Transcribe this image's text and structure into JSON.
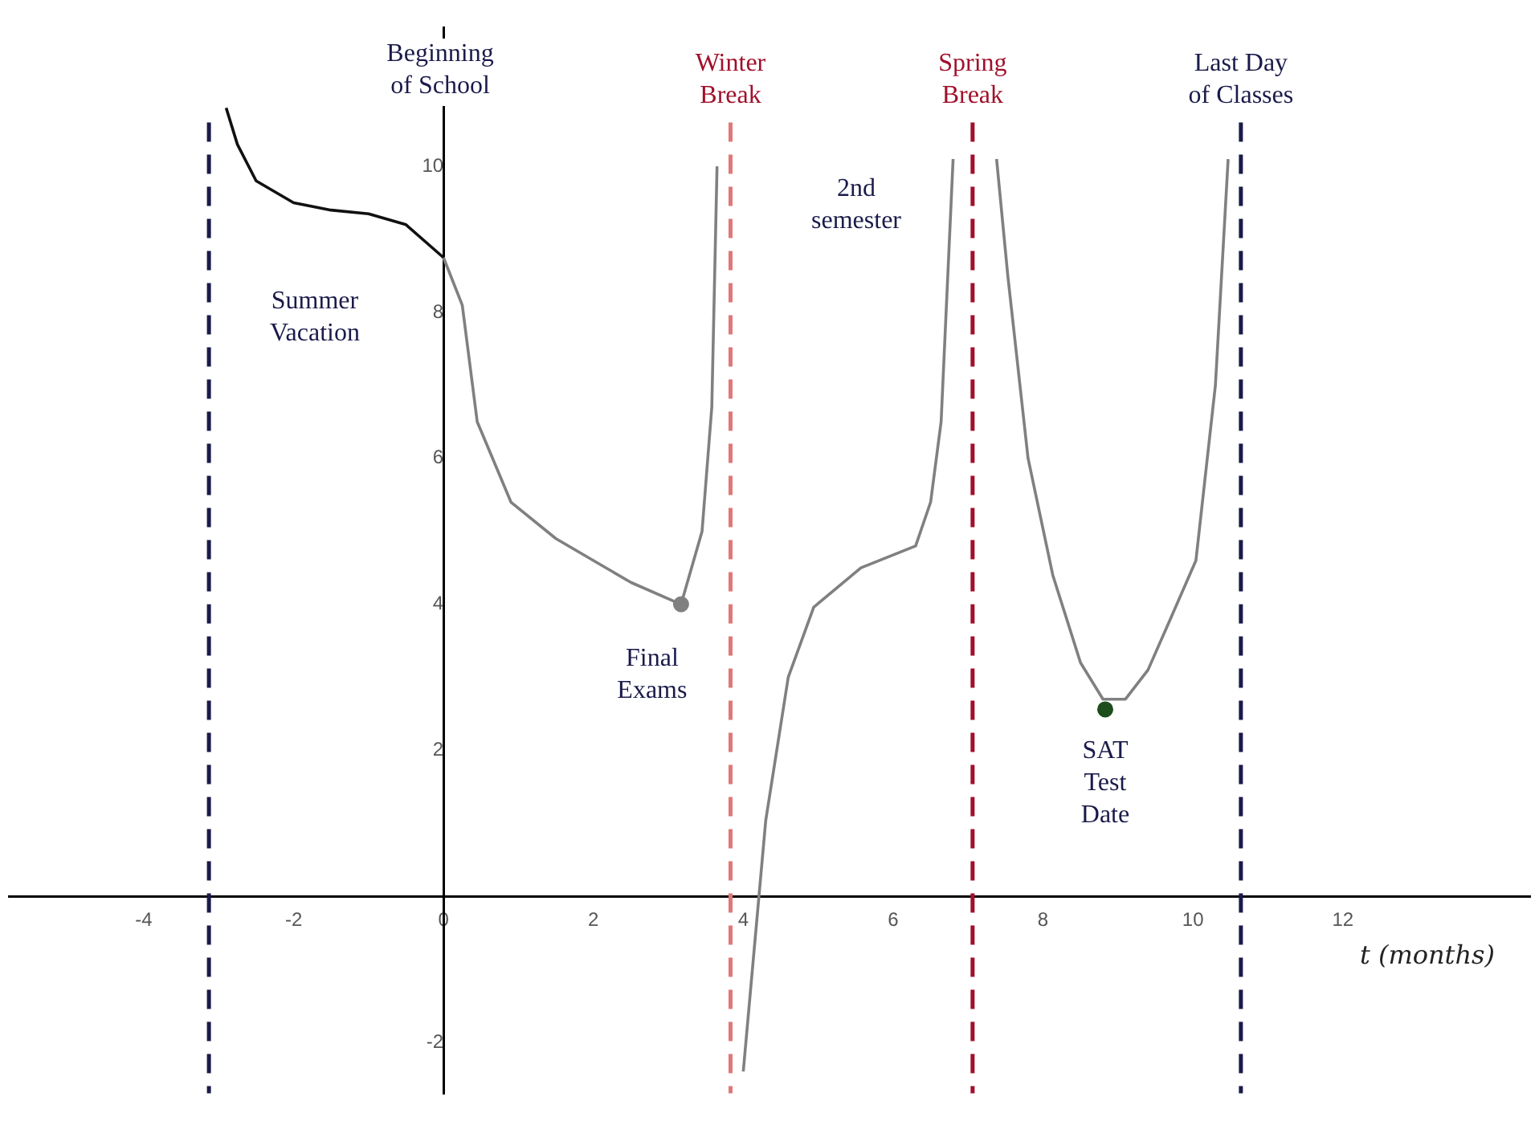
{
  "chart_data": {
    "type": "line",
    "xlabel": "t (months)",
    "xlim": [
      -5.8,
      14.5
    ],
    "ylim": [
      -2.7,
      11.9
    ],
    "xticks": [
      -4,
      -2,
      0,
      2,
      4,
      6,
      8,
      10,
      12
    ],
    "yticks": [
      -2,
      2,
      4,
      6,
      8,
      10
    ],
    "grid": false,
    "legend": false,
    "marker": "none",
    "series": [
      {
        "color": "#111111",
        "x": [
          -2.9,
          -2.75,
          -2.5,
          -2.0,
          -1.5,
          -1.0,
          -0.5,
          0
        ],
        "values": [
          10.8,
          10.3,
          9.8,
          9.5,
          9.4,
          9.35,
          9.2,
          8.75
        ]
      },
      {
        "color": "#808080",
        "x": [
          0,
          0.25,
          0.45,
          0.9,
          1.5,
          2.0,
          2.5,
          3.17,
          null,
          3.17,
          3.45,
          3.58,
          3.65,
          null,
          4.0,
          4.3,
          4.6,
          4.94,
          5.57,
          6.3,
          6.5,
          6.64,
          6.8,
          null,
          7.38,
          7.53,
          7.8,
          8.13,
          8.5,
          8.8,
          9.1,
          9.4,
          9.7,
          10.04,
          10.3,
          10.47
        ],
        "values": [
          8.75,
          8.1,
          6.5,
          5.4,
          4.9,
          4.6,
          4.3,
          4.0,
          null,
          4.0,
          5.0,
          6.7,
          10.0,
          null,
          -2.4,
          1.04,
          3.0,
          3.96,
          4.5,
          4.8,
          5.4,
          6.5,
          10.1,
          null,
          10.1,
          8.5,
          6.0,
          4.4,
          3.2,
          2.7,
          2.7,
          3.1,
          3.8,
          4.6,
          7.0,
          10.1
        ]
      },
      {
        "type": "scatter",
        "marker": "circle",
        "color": "#808080",
        "x": [
          3.17
        ],
        "values": [
          4.0
        ]
      },
      {
        "type": "scatter",
        "marker": "circle",
        "color": "#1d4d1d",
        "x": [
          8.83
        ],
        "values": [
          2.56
        ]
      }
    ],
    "ref_lines": [
      {
        "axis": "x",
        "value": -3.13,
        "label": null,
        "color": "#1a1a4a",
        "line_style": "dashed"
      },
      {
        "axis": "x",
        "value": 3.83,
        "label": "Winter\nBreak",
        "color": "#e07878",
        "line_style": "dashed"
      },
      {
        "axis": "x",
        "value": 7.06,
        "label": "Spring\nBreak",
        "color": "#a0102a",
        "line_style": "dashed"
      },
      {
        "axis": "x",
        "value": 10.64,
        "label": "Last Day\nof Classes",
        "color": "#1a1a4a",
        "line_style": "dashed"
      }
    ],
    "annotations": [
      "Beginning\nof School",
      "Summer\nVacation",
      "2nd\nsemester",
      {
        "text": "Final\nExams",
        "x": 3.17,
        "y": 4.0
      },
      {
        "text": "SAT\nTest\nDate",
        "x": 8.83,
        "y": 2.56
      }
    ]
  }
}
